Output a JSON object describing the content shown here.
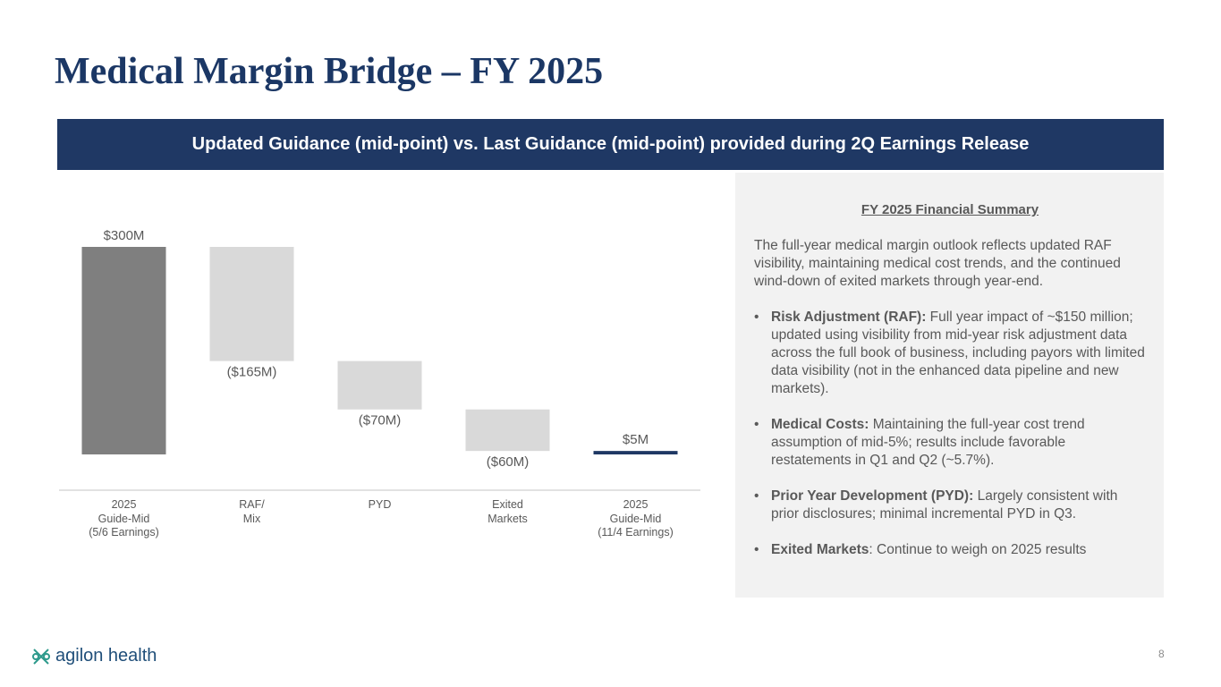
{
  "title": "Medical Margin Bridge – FY 2025",
  "banner": "Updated Guidance (mid-point) vs. Last Guidance (mid-point) provided during 2Q Earnings Release",
  "chart_data": {
    "type": "waterfall",
    "categories": [
      "2025\nGuide-Mid\n(5/6 Earnings)",
      "RAF/\nMix",
      "PYD",
      "Exited\nMarkets",
      "2025\nGuide-Mid\n(11/4 Earnings)"
    ],
    "values": [
      300,
      -165,
      -70,
      -60,
      5
    ],
    "value_labels": [
      "$300M",
      "($165M)",
      "($70M)",
      "($60M)",
      "$5M"
    ],
    "is_total": [
      true,
      false,
      false,
      false,
      true
    ],
    "colors": [
      "#7f7f7f",
      "#d9d9d9",
      "#d9d9d9",
      "#d9d9d9",
      "#1f3864"
    ]
  },
  "summary": {
    "heading": "FY 2025 Financial Summary",
    "intro": "The full-year medical margin outlook reflects updated RAF visibility, maintaining medical cost trends, and the continued wind-down of exited markets through year-end.",
    "bullets": [
      {
        "label": "Risk Adjustment (RAF):",
        "text": " Full year impact of ~$150 million; updated using visibility from mid-year risk adjustment data across the full book of business, including payors with limited data visibility (not in the enhanced data pipeline and new markets)."
      },
      {
        "label": "Medical Costs:",
        "text": " Maintaining the full-year cost trend assumption of mid-5%; results include favorable restatements in Q1 and Q2 (~5.7%)."
      },
      {
        "label": "Prior Year Development (PYD):",
        "text": " Largely consistent with prior disclosures; minimal incremental PYD in Q3."
      },
      {
        "label": "Exited Markets",
        "text": ": Continue to weigh on 2025 results"
      }
    ]
  },
  "logo": "agilon health",
  "page_number": "8"
}
